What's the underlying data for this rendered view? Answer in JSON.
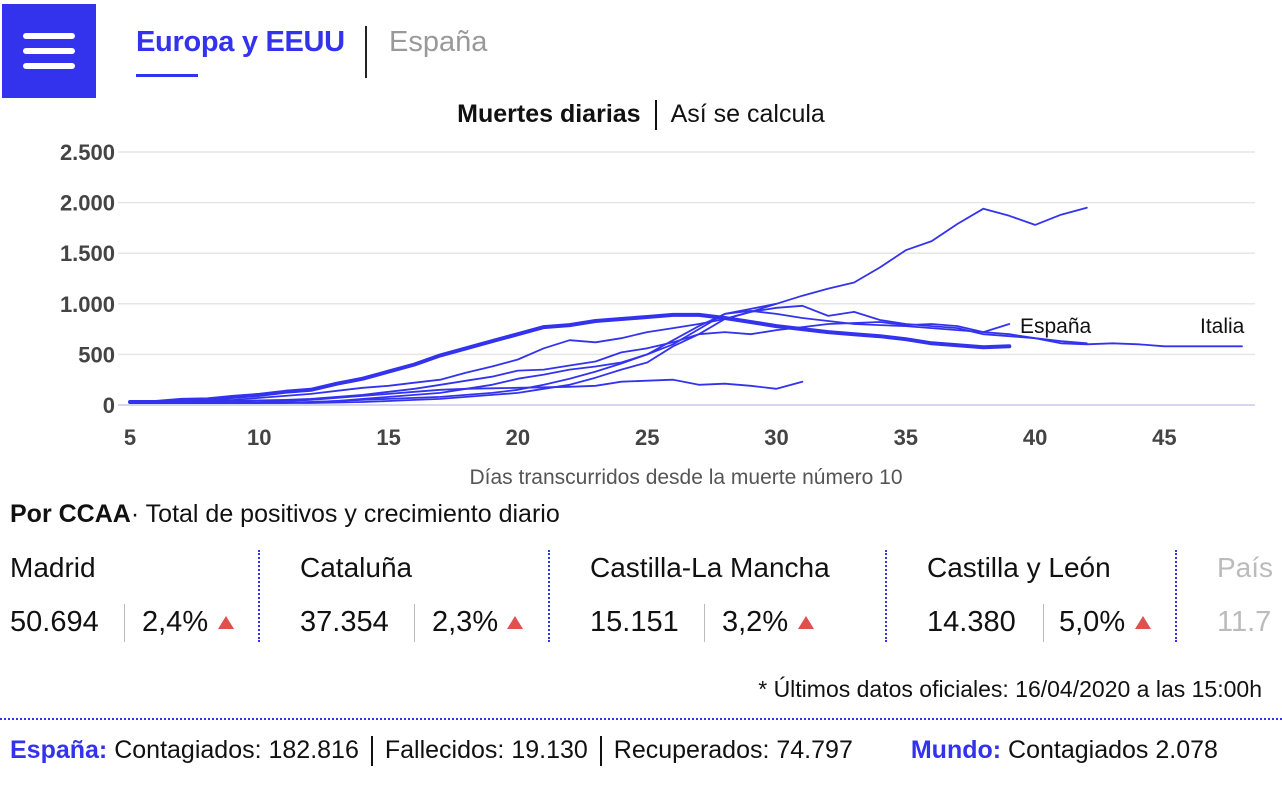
{
  "header": {
    "menu_icon": "hamburger-icon",
    "tabs": [
      {
        "label": "Europa y EEUU",
        "active": true
      },
      {
        "label": "España",
        "active": false
      }
    ]
  },
  "chart_header": {
    "title": "Muertes diarias",
    "link": "Así se calcula"
  },
  "chart_data": {
    "type": "line",
    "title": "Muertes diarias",
    "xlabel": "Días transcurridos desde la muerte número 10",
    "ylabel": "",
    "xlim": [
      5,
      48
    ],
    "ylim": [
      0,
      2500
    ],
    "x_ticks": [
      5,
      10,
      15,
      20,
      25,
      30,
      35,
      40,
      45
    ],
    "y_ticks": [
      0,
      500,
      1000,
      1500,
      2000,
      2500
    ],
    "y_tick_labels": [
      "0",
      "500",
      "1.000",
      "1.500",
      "2.000",
      "2.500"
    ],
    "grid": true,
    "series": [
      {
        "name": "España",
        "bold": true,
        "x": [
          5,
          6,
          7,
          8,
          9,
          10,
          11,
          12,
          13,
          14,
          15,
          16,
          17,
          18,
          19,
          20,
          21,
          22,
          23,
          24,
          25,
          26,
          27,
          28,
          29,
          30,
          31,
          32,
          33,
          34,
          35,
          36,
          37,
          38,
          39
        ],
        "values": [
          30,
          30,
          50,
          55,
          80,
          100,
          130,
          150,
          210,
          260,
          330,
          400,
          490,
          560,
          630,
          700,
          770,
          790,
          830,
          850,
          870,
          890,
          890,
          860,
          820,
          780,
          750,
          720,
          700,
          680,
          650,
          610,
          590,
          570,
          580
        ]
      },
      {
        "name": "Italia",
        "x": [
          5,
          6,
          7,
          8,
          9,
          10,
          11,
          12,
          13,
          14,
          15,
          16,
          17,
          18,
          19,
          20,
          21,
          22,
          23,
          24,
          25,
          26,
          27,
          28,
          29,
          30,
          31,
          32,
          33,
          34,
          35,
          36,
          37,
          38,
          39,
          40,
          41,
          42,
          43,
          44,
          45,
          46,
          47,
          48
        ],
        "values": [
          30,
          35,
          40,
          45,
          50,
          70,
          90,
          110,
          140,
          170,
          190,
          220,
          250,
          320,
          380,
          450,
          560,
          640,
          620,
          660,
          720,
          760,
          800,
          850,
          920,
          960,
          980,
          880,
          920,
          840,
          800,
          780,
          760,
          700,
          680,
          660,
          610,
          600,
          610,
          600,
          580,
          580,
          580,
          580
        ]
      },
      {
        "name": "",
        "x": [
          5,
          6,
          7,
          8,
          9,
          10,
          11,
          12,
          13,
          14,
          15,
          16,
          17,
          18,
          19,
          20,
          21,
          22,
          23,
          24,
          25,
          26,
          27,
          28,
          29,
          30,
          31,
          32,
          33,
          34,
          35,
          36,
          37,
          38,
          39,
          40,
          41,
          42
        ],
        "values": [
          20,
          20,
          20,
          20,
          20,
          20,
          20,
          30,
          40,
          60,
          80,
          100,
          120,
          160,
          200,
          260,
          300,
          350,
          380,
          420,
          500,
          600,
          750,
          900,
          930,
          900,
          860,
          830,
          800,
          790,
          780,
          760,
          740,
          720,
          700,
          660,
          630,
          610
        ]
      },
      {
        "name": "",
        "x": [
          5,
          6,
          7,
          8,
          9,
          10,
          11,
          12,
          13,
          14,
          15,
          16,
          17,
          18,
          19,
          20,
          21,
          22,
          23,
          24,
          25,
          26,
          27,
          28,
          29,
          30,
          31,
          32,
          33,
          34,
          35,
          36,
          37,
          38,
          39,
          40,
          41,
          42
        ],
        "values": [
          20,
          20,
          20,
          20,
          20,
          20,
          25,
          30,
          40,
          50,
          60,
          70,
          80,
          100,
          120,
          150,
          200,
          260,
          330,
          410,
          500,
          640,
          780,
          900,
          950,
          1000,
          1080,
          1150,
          1210,
          1360,
          1530,
          1620,
          1790,
          1940,
          1870,
          1780,
          1880,
          1950
        ]
      },
      {
        "name": "",
        "x": [
          5,
          6,
          7,
          8,
          9,
          10,
          11,
          12,
          13,
          14,
          15,
          16,
          17,
          18,
          19,
          20,
          21,
          22,
          23,
          24,
          25,
          26,
          27,
          28,
          29,
          30,
          31,
          32,
          33,
          34,
          35,
          36,
          37,
          38,
          39
        ],
        "values": [
          20,
          25,
          30,
          35,
          40,
          45,
          50,
          60,
          80,
          100,
          130,
          160,
          200,
          240,
          280,
          340,
          350,
          390,
          430,
          520,
          560,
          620,
          700,
          720,
          700,
          740,
          770,
          800,
          810,
          820,
          790,
          800,
          780,
          720,
          800
        ]
      },
      {
        "name": "",
        "x": [
          5,
          6,
          7,
          8,
          9,
          10,
          11,
          12,
          13,
          14,
          15,
          16,
          17,
          18,
          19,
          20,
          21,
          22,
          23,
          24,
          25,
          26,
          27,
          28,
          29,
          30,
          31
        ],
        "values": [
          20,
          20,
          20,
          20,
          25,
          30,
          40,
          50,
          70,
          90,
          110,
          130,
          150,
          160,
          165,
          170,
          175,
          180,
          190,
          230,
          240,
          250,
          200,
          210,
          190,
          160,
          230
        ]
      },
      {
        "name": "",
        "x": [
          5,
          6,
          7,
          8,
          9,
          10,
          11,
          12,
          13,
          14,
          15,
          16,
          17,
          18,
          19,
          20,
          21,
          22,
          23,
          24,
          25,
          26,
          27,
          28,
          29,
          30
        ],
        "values": [
          20,
          20,
          20,
          20,
          20,
          20,
          20,
          20,
          25,
          30,
          40,
          50,
          60,
          80,
          100,
          120,
          160,
          200,
          270,
          350,
          420,
          580,
          700,
          850,
          920,
          1000
        ]
      }
    ]
  },
  "ccaa": {
    "title_bold": "Por CCAA",
    "title_rest": "· Total de positivos y crecimiento diario",
    "items": [
      {
        "name": "Madrid",
        "total": "50.694",
        "pct": "2,4%"
      },
      {
        "name": "Cataluña",
        "total": "37.354",
        "pct": "2,3%"
      },
      {
        "name": "Castilla-La Mancha",
        "total": "15.151",
        "pct": "3,2%"
      },
      {
        "name": "Castilla y León",
        "total": "14.380",
        "pct": "5,0%"
      },
      {
        "name": "País",
        "total": "11.7",
        "pct": ""
      }
    ],
    "up_icon": "triangle-up-icon"
  },
  "footnote": "* Últimos datos oficiales: 16/04/2020 a las 15:00h",
  "bottom": {
    "spain_label": "España:",
    "contagiados": "Contagiados: 182.816",
    "fallecidos": "Fallecidos: 19.130",
    "recuperados": "Recuperados: 74.797",
    "world_label": "Mundo:",
    "world_contagiados": "Contagiados 2.078"
  },
  "colors": {
    "accent": "#3333ee",
    "up": "#e05050"
  }
}
